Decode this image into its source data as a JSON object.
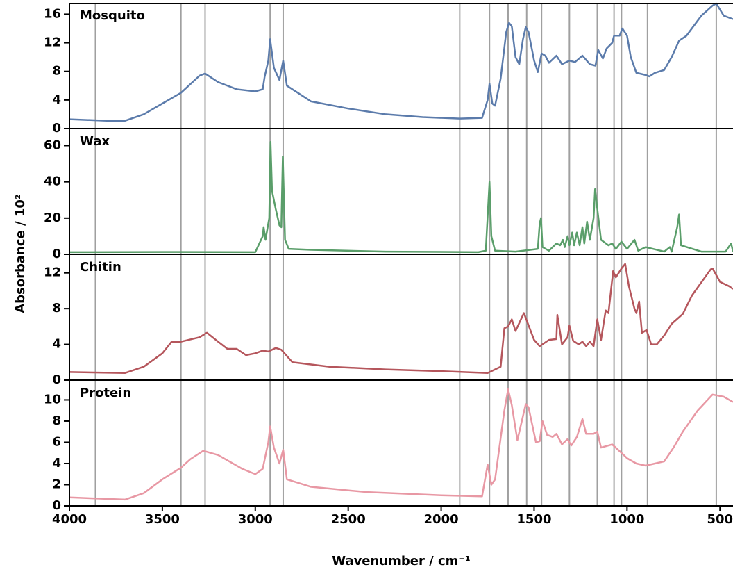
{
  "ylabel": "Absorbance / 10²",
  "reference_lines": [
    3860,
    3400,
    3270,
    2920,
    2850,
    1900,
    1740,
    1640,
    1540,
    1460,
    1310,
    1160,
    1070,
    1030,
    890,
    520
  ],
  "chart_data": [
    {
      "type": "line",
      "title": "Mosquito",
      "color": "#5b7bab",
      "xlim": [
        4000,
        430
      ],
      "ylim": [
        0,
        17.5
      ],
      "yticks": [
        0,
        4,
        8,
        12,
        16
      ],
      "x": [
        4000,
        3800,
        3700,
        3600,
        3500,
        3400,
        3300,
        3270,
        3200,
        3100,
        3000,
        2960,
        2950,
        2930,
        2920,
        2900,
        2870,
        2850,
        2830,
        2700,
        2500,
        2300,
        2100,
        1900,
        1780,
        1750,
        1740,
        1725,
        1710,
        1680,
        1650,
        1635,
        1620,
        1600,
        1580,
        1560,
        1545,
        1530,
        1500,
        1480,
        1460,
        1440,
        1420,
        1380,
        1350,
        1310,
        1280,
        1240,
        1200,
        1170,
        1155,
        1130,
        1110,
        1080,
        1070,
        1040,
        1025,
        1000,
        980,
        950,
        900,
        880,
        850,
        800,
        760,
        720,
        680,
        600,
        540,
        520,
        480,
        430
      ],
      "values": [
        1.3,
        1.1,
        1.1,
        2.0,
        3.5,
        5.0,
        7.4,
        7.7,
        6.5,
        5.5,
        5.2,
        5.5,
        7.2,
        9.5,
        12.5,
        8.5,
        6.8,
        9.5,
        6.0,
        3.8,
        2.8,
        2.0,
        1.6,
        1.4,
        1.5,
        4.0,
        6.3,
        3.5,
        3.2,
        7.0,
        13.5,
        14.8,
        14.3,
        10,
        9.0,
        12.5,
        14.2,
        13.5,
        9.5,
        7.9,
        10.5,
        10.2,
        9.2,
        10.2,
        9.0,
        9.5,
        9.3,
        10.2,
        9.0,
        8.8,
        11.0,
        9.8,
        11.2,
        12.0,
        13.0,
        13.0,
        14.0,
        13.0,
        10.0,
        7.8,
        7.5,
        7.3,
        7.8,
        8.2,
        10,
        12.3,
        13,
        15.8,
        17.2,
        17.5,
        15.8,
        15.3
      ]
    },
    {
      "type": "line",
      "title": "Wax",
      "color": "#5a9e6a",
      "xlim": [
        4000,
        430
      ],
      "ylim": [
        0,
        69
      ],
      "yticks": [
        0,
        20,
        40,
        60
      ],
      "x": [
        4000,
        3500,
        3000,
        2960,
        2955,
        2945,
        2925,
        2918,
        2910,
        2890,
        2870,
        2860,
        2852,
        2840,
        2820,
        2700,
        2300,
        1800,
        1760,
        1740,
        1730,
        1710,
        1600,
        1480,
        1470,
        1463,
        1455,
        1420,
        1380,
        1360,
        1345,
        1335,
        1320,
        1310,
        1295,
        1285,
        1270,
        1255,
        1240,
        1230,
        1215,
        1200,
        1180,
        1172,
        1160,
        1140,
        1100,
        1080,
        1060,
        1030,
        1000,
        960,
        940,
        900,
        800,
        770,
        760,
        730,
        720,
        710,
        600,
        470,
        440,
        430
      ],
      "values": [
        1.2,
        1.3,
        1.2,
        10,
        15,
        8,
        20,
        62,
        35,
        25,
        16,
        15,
        54,
        8,
        3,
        2.5,
        1.5,
        1.2,
        2,
        40,
        10,
        2,
        1.5,
        3,
        17,
        20,
        4,
        2,
        6,
        5,
        8,
        4,
        10,
        5,
        12,
        5,
        12,
        5,
        15,
        6,
        18,
        8,
        20,
        36,
        25,
        8,
        5,
        6,
        3,
        7,
        3,
        8,
        2,
        4,
        1.5,
        4,
        1.5,
        15,
        22,
        5,
        1.5,
        1.5,
        6,
        1.5
      ]
    },
    {
      "type": "line",
      "title": "Chitin",
      "color": "#b5565c",
      "xlim": [
        4000,
        430
      ],
      "ylim": [
        0,
        14
      ],
      "yticks": [
        0,
        4,
        8,
        12
      ],
      "x": [
        4000,
        3700,
        3600,
        3500,
        3450,
        3400,
        3300,
        3260,
        3200,
        3150,
        3100,
        3050,
        3000,
        2960,
        2930,
        2890,
        2860,
        2800,
        2600,
        2300,
        2000,
        1750,
        1680,
        1660,
        1640,
        1620,
        1600,
        1555,
        1500,
        1470,
        1420,
        1380,
        1375,
        1350,
        1320,
        1310,
        1290,
        1260,
        1240,
        1220,
        1200,
        1180,
        1160,
        1140,
        1115,
        1100,
        1075,
        1060,
        1030,
        1010,
        990,
        960,
        950,
        935,
        920,
        895,
        870,
        840,
        800,
        760,
        700,
        650,
        550,
        540,
        500,
        450,
        430
      ],
      "values": [
        0.9,
        0.8,
        1.5,
        3.0,
        4.3,
        4.3,
        4.8,
        5.3,
        4.3,
        3.5,
        3.5,
        2.8,
        3.0,
        3.3,
        3.2,
        3.6,
        3.4,
        2.0,
        1.5,
        1.2,
        1.0,
        0.8,
        1.5,
        5.8,
        6.0,
        6.8,
        5.5,
        7.5,
        4.5,
        3.8,
        4.5,
        4.6,
        7.3,
        4.0,
        4.8,
        6.1,
        4.4,
        4.0,
        4.3,
        3.8,
        4.3,
        3.8,
        6.8,
        4.5,
        7.8,
        7.5,
        12.2,
        11.5,
        12.5,
        13.0,
        10.5,
        8.0,
        7.5,
        8.8,
        5.3,
        5.6,
        4.0,
        4.0,
        5,
        6.3,
        7.4,
        9.5,
        12.4,
        12.5,
        11,
        10.5,
        10.2
      ]
    },
    {
      "type": "line",
      "title": "Protein",
      "color": "#e898a4",
      "xlim": [
        4000,
        430
      ],
      "ylim": [
        0,
        11.8
      ],
      "yticks": [
        0,
        2,
        4,
        6,
        8,
        10
      ],
      "xticks": [
        4000,
        3500,
        3000,
        2500,
        2000,
        1500,
        1000,
        500
      ],
      "xlabel": "Wavenumber / cm⁻¹",
      "x": [
        4000,
        3700,
        3600,
        3500,
        3400,
        3350,
        3280,
        3200,
        3100,
        3070,
        3000,
        2960,
        2930,
        2920,
        2900,
        2870,
        2850,
        2830,
        2700,
        2400,
        2000,
        1780,
        1750,
        1730,
        1710,
        1660,
        1640,
        1620,
        1590,
        1545,
        1530,
        1490,
        1470,
        1455,
        1430,
        1400,
        1380,
        1350,
        1320,
        1300,
        1270,
        1240,
        1220,
        1180,
        1160,
        1140,
        1080,
        1030,
        1000,
        950,
        900,
        850,
        800,
        750,
        700,
        620,
        540,
        480,
        430
      ],
      "values": [
        0.8,
        0.6,
        1.2,
        2.5,
        3.6,
        4.4,
        5.2,
        4.8,
        3.8,
        3.5,
        3.0,
        3.5,
        6.0,
        7.5,
        5.5,
        4.0,
        5.3,
        2.5,
        1.8,
        1.3,
        1.0,
        0.9,
        3.9,
        2.0,
        2.5,
        9.0,
        11.0,
        9.5,
        6.2,
        9.6,
        9.3,
        6.0,
        6.1,
        8.0,
        6.7,
        6.5,
        6.8,
        5.8,
        6.3,
        5.7,
        6.5,
        8.2,
        6.8,
        6.8,
        7.0,
        5.5,
        5.8,
        5.0,
        4.5,
        4.0,
        3.8,
        4.0,
        4.2,
        5.5,
        7.0,
        9.0,
        10.5,
        10.3,
        9.8
      ]
    }
  ]
}
